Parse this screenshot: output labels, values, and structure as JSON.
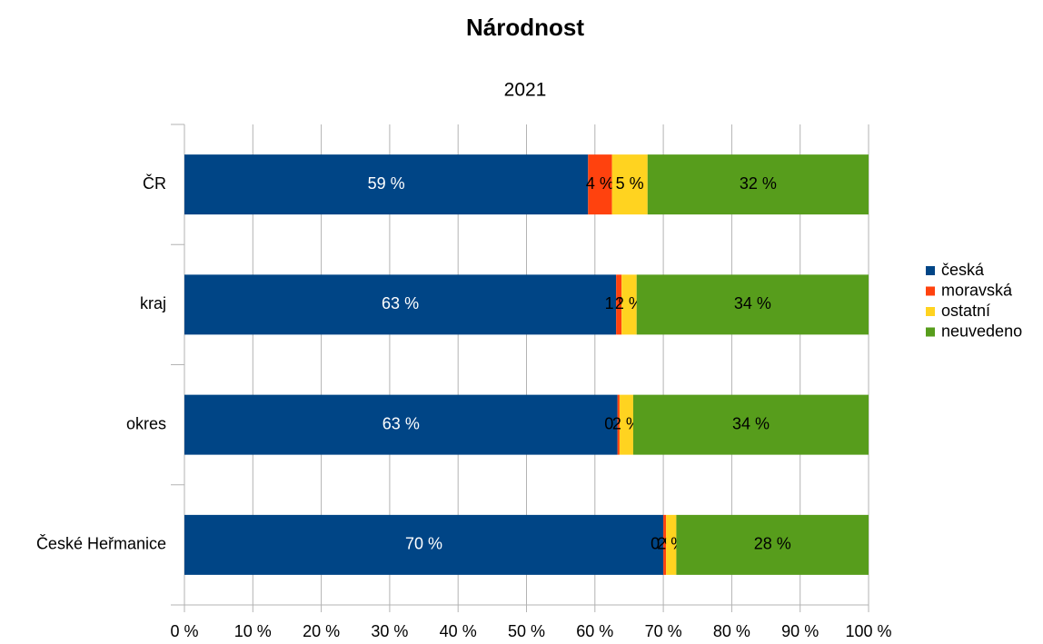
{
  "chart_data": {
    "type": "stacked_barh",
    "title": "Národnost",
    "subtitle": "2021",
    "categories": [
      "ČR",
      "kraj",
      "okres",
      "České Heřmanice"
    ],
    "series": [
      {
        "name": "česká",
        "color": "#004586",
        "values": [
          59.0,
          63.1,
          63.3,
          70.0
        ],
        "value_labels": [
          "59 %",
          "63 %",
          "63 %",
          "70 %"
        ]
      },
      {
        "name": "moravská",
        "color": "#ff420e",
        "values": [
          3.5,
          0.8,
          0.3,
          0.4
        ],
        "value_labels": [
          "4 %",
          "1 %",
          "0 %",
          "0 %"
        ]
      },
      {
        "name": "ostatní",
        "color": "#ffd320",
        "values": [
          5.2,
          2.2,
          2.0,
          1.5
        ],
        "value_labels": [
          "5 %",
          "2 %",
          "2 %",
          "2 %"
        ]
      },
      {
        "name": "neuvedeno",
        "color": "#579d1c",
        "values": [
          32.3,
          33.9,
          34.4,
          28.1
        ],
        "value_labels": [
          "32 %",
          "34 %",
          "34 %",
          "28 %"
        ]
      }
    ],
    "xlim": [
      0,
      100
    ],
    "xticks": [
      {
        "value": 0,
        "label": "0 %"
      },
      {
        "value": 10,
        "label": "10 %"
      },
      {
        "value": 20,
        "label": "20 %"
      },
      {
        "value": 30,
        "label": "30 %"
      },
      {
        "value": 40,
        "label": "40 %"
      },
      {
        "value": 50,
        "label": "50 %"
      },
      {
        "value": 60,
        "label": "60 %"
      },
      {
        "value": 70,
        "label": "70 %"
      },
      {
        "value": 80,
        "label": "80 %"
      },
      {
        "value": 90,
        "label": "90 %"
      },
      {
        "value": 100,
        "label": "100 %"
      }
    ],
    "grid": true,
    "legend": "right"
  }
}
